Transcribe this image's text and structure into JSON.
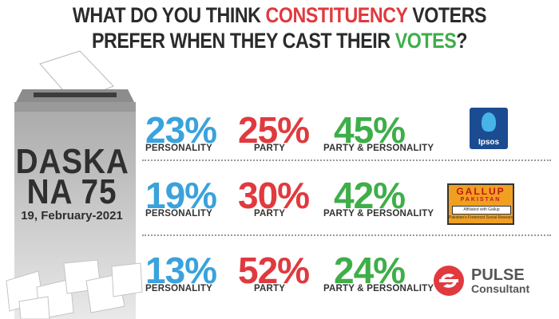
{
  "title": {
    "line1_a": "WHAT DO YOU THINK ",
    "line1_b": "CONSTITUENCY",
    "line1_c": " VOTERS",
    "line2_a": "PREFER WHEN THEY CAST THEIR ",
    "line2_b": "VOTES",
    "line2_c": "?"
  },
  "ballot": {
    "place": "DASKA",
    "constituency": "NA 75",
    "date": "19, February-2021"
  },
  "colors": {
    "personality": "#3aa2dc",
    "party": "#e03a3e",
    "party_personality": "#3eae49",
    "title_dark": "#2b2b2b"
  },
  "chart_data": {
    "type": "table",
    "categories": [
      "PERSONALITY",
      "PARTY",
      "PARTY & PERSONALITY"
    ],
    "rows": [
      {
        "source": "Ipsos",
        "values": [
          "23%",
          "25%",
          "45%"
        ]
      },
      {
        "source": "Gallup Pakistan",
        "values": [
          "19%",
          "30%",
          "42%"
        ]
      },
      {
        "source": "Pulse Consultant",
        "values": [
          "13%",
          "52%",
          "24%"
        ]
      }
    ]
  },
  "logos": {
    "ipsos": "Ipsos",
    "gallup_1": "GALLUP",
    "gallup_2": "PAKISTAN",
    "gallup_3": "Affiliated with Gallup International",
    "gallup_4": "Pakistan's Foremost Social Research Lab",
    "pulse_1": "PULSE",
    "pulse_2": "Consultant"
  }
}
